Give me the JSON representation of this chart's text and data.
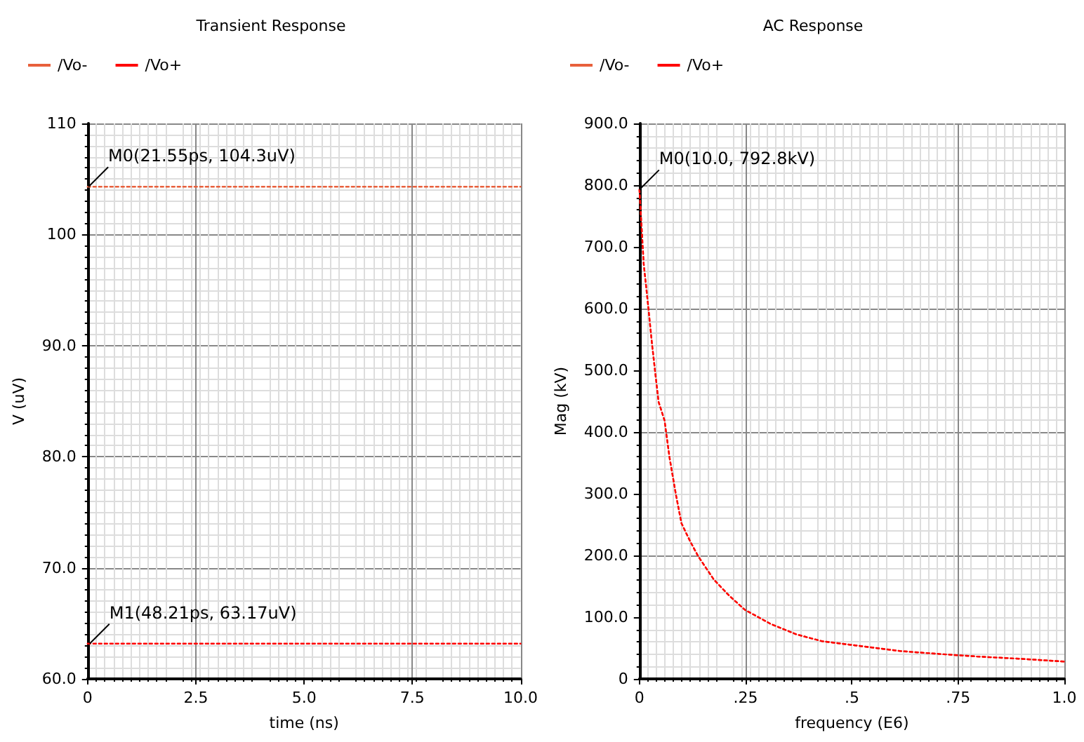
{
  "chart_data": [
    {
      "type": "line",
      "title": "Transient Response",
      "xlabel": "time (ns)",
      "ylabel": "V (uV)",
      "legend": "top left",
      "grid": true,
      "marker": "none",
      "line_style": "dotted",
      "xlim": [
        0,
        10
      ],
      "xticks": [
        0,
        2.5,
        {
          "value": 5,
          "label": "5.0"
        },
        7.5,
        {
          "value": 10,
          "label": "10.0"
        }
      ],
      "ylim": [
        60,
        110
      ],
      "yticks": [
        {
          "value": 60,
          "label": "60.0"
        },
        {
          "value": 70,
          "label": "70.0"
        },
        {
          "value": 80,
          "label": "80.0"
        },
        {
          "value": 90,
          "label": "90.0"
        },
        100,
        110
      ],
      "annotations": [
        {
          "text": "M0(21.55ps, 104.3uV)",
          "x": 0.02155,
          "y": 104.3
        },
        {
          "text": "M1(48.21ps, 63.17uV)",
          "x": 0.04821,
          "y": 63.17
        }
      ],
      "series": [
        {
          "name": "/Vo-",
          "color": "#e8603c",
          "x": [
            0,
            10
          ],
          "values": [
            104.3,
            104.3
          ]
        },
        {
          "name": "/Vo+",
          "color": "#ff0000",
          "x": [
            0,
            10
          ],
          "values": [
            63.17,
            63.17
          ]
        }
      ]
    },
    {
      "type": "line",
      "title": "AC Response",
      "xlabel": "frequency (E6)",
      "ylabel": "Mag (kV)",
      "legend": "top left",
      "grid": true,
      "marker": "none",
      "line_style": "dotted",
      "xlim": [
        0,
        1
      ],
      "xticks": [
        0,
        {
          "value": 0.25,
          "label": ".25"
        },
        {
          "value": 0.5,
          "label": ".5"
        },
        {
          "value": 0.75,
          "label": ".75"
        },
        {
          "value": 1,
          "label": "1.0"
        }
      ],
      "ylim": [
        0,
        900
      ],
      "yticks": [
        0,
        {
          "value": 100,
          "label": "100.0"
        },
        {
          "value": 200,
          "label": "200.0"
        },
        {
          "value": 300,
          "label": "300.0"
        },
        {
          "value": 400,
          "label": "400.0"
        },
        {
          "value": 500,
          "label": "500.0"
        },
        {
          "value": 600,
          "label": "600.0"
        },
        {
          "value": 700,
          "label": "700.0"
        },
        {
          "value": 800,
          "label": "800.0"
        },
        {
          "value": 900,
          "label": "900.0"
        }
      ],
      "annotations": [
        {
          "text": "M0(10.0, 792.8kV)",
          "x": 1e-05,
          "y": 792.8
        }
      ],
      "series": [
        {
          "name": "/Vo-",
          "color": "#e8603c",
          "x": [
            1e-05,
            0.01,
            0.02,
            0.03,
            0.045,
            0.059,
            0.071,
            0.086,
            0.099,
            0.12,
            0.138,
            0.175,
            0.211,
            0.248,
            0.309,
            0.37,
            0.43,
            0.5,
            0.615,
            0.713,
            0.8,
            0.884,
            1.0
          ],
          "values": [
            792.8,
            673,
            608,
            540,
            449,
            419,
            358,
            298,
            252,
            222,
            199,
            161,
            135,
            112,
            89,
            72,
            61,
            55,
            45,
            40,
            36,
            33,
            28
          ]
        },
        {
          "name": "/Vo+",
          "color": "#ff0000",
          "x": [
            1e-05,
            0.01,
            0.02,
            0.03,
            0.045,
            0.059,
            0.071,
            0.086,
            0.099,
            0.12,
            0.138,
            0.175,
            0.211,
            0.248,
            0.309,
            0.37,
            0.43,
            0.5,
            0.615,
            0.713,
            0.8,
            0.884,
            1.0
          ],
          "values": [
            792.8,
            673,
            608,
            540,
            449,
            419,
            358,
            298,
            252,
            222,
            199,
            161,
            135,
            112,
            89,
            72,
            61,
            55,
            45,
            40,
            36,
            33,
            28
          ]
        }
      ]
    }
  ]
}
